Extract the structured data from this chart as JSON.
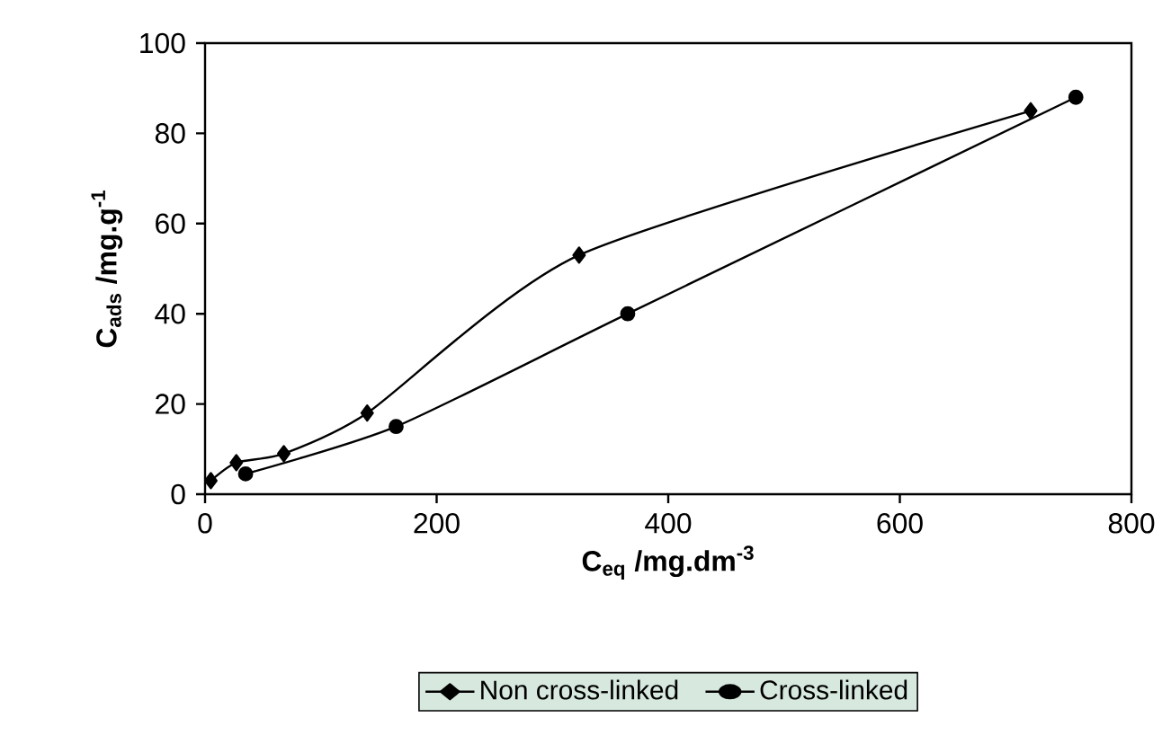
{
  "chart_data": {
    "type": "line",
    "xlabel": "C$_{eq}$  /mg.dm$^{-3}$",
    "ylabel": "C$_{ads}$  /mg.g$^{-1}$",
    "xlim": [
      0,
      800
    ],
    "xticks": [
      0,
      200,
      400,
      600,
      800
    ],
    "ylim": [
      0,
      100
    ],
    "yticks": [
      0,
      20,
      40,
      60,
      80,
      100
    ],
    "grid": false,
    "legend": "bottom",
    "line_style": "solid",
    "series": [
      {
        "name": "Non cross-linked",
        "color": "#000000",
        "marker": "diamond",
        "x": [
          5,
          27,
          68,
          140,
          323,
          713
        ],
        "values": [
          3,
          7,
          9,
          18,
          53,
          85
        ]
      },
      {
        "name": "Cross-linked",
        "color": "#000000",
        "marker": "circle",
        "x": [
          35,
          165,
          365,
          752
        ],
        "values": [
          4.5,
          15,
          40,
          88
        ]
      }
    ]
  }
}
